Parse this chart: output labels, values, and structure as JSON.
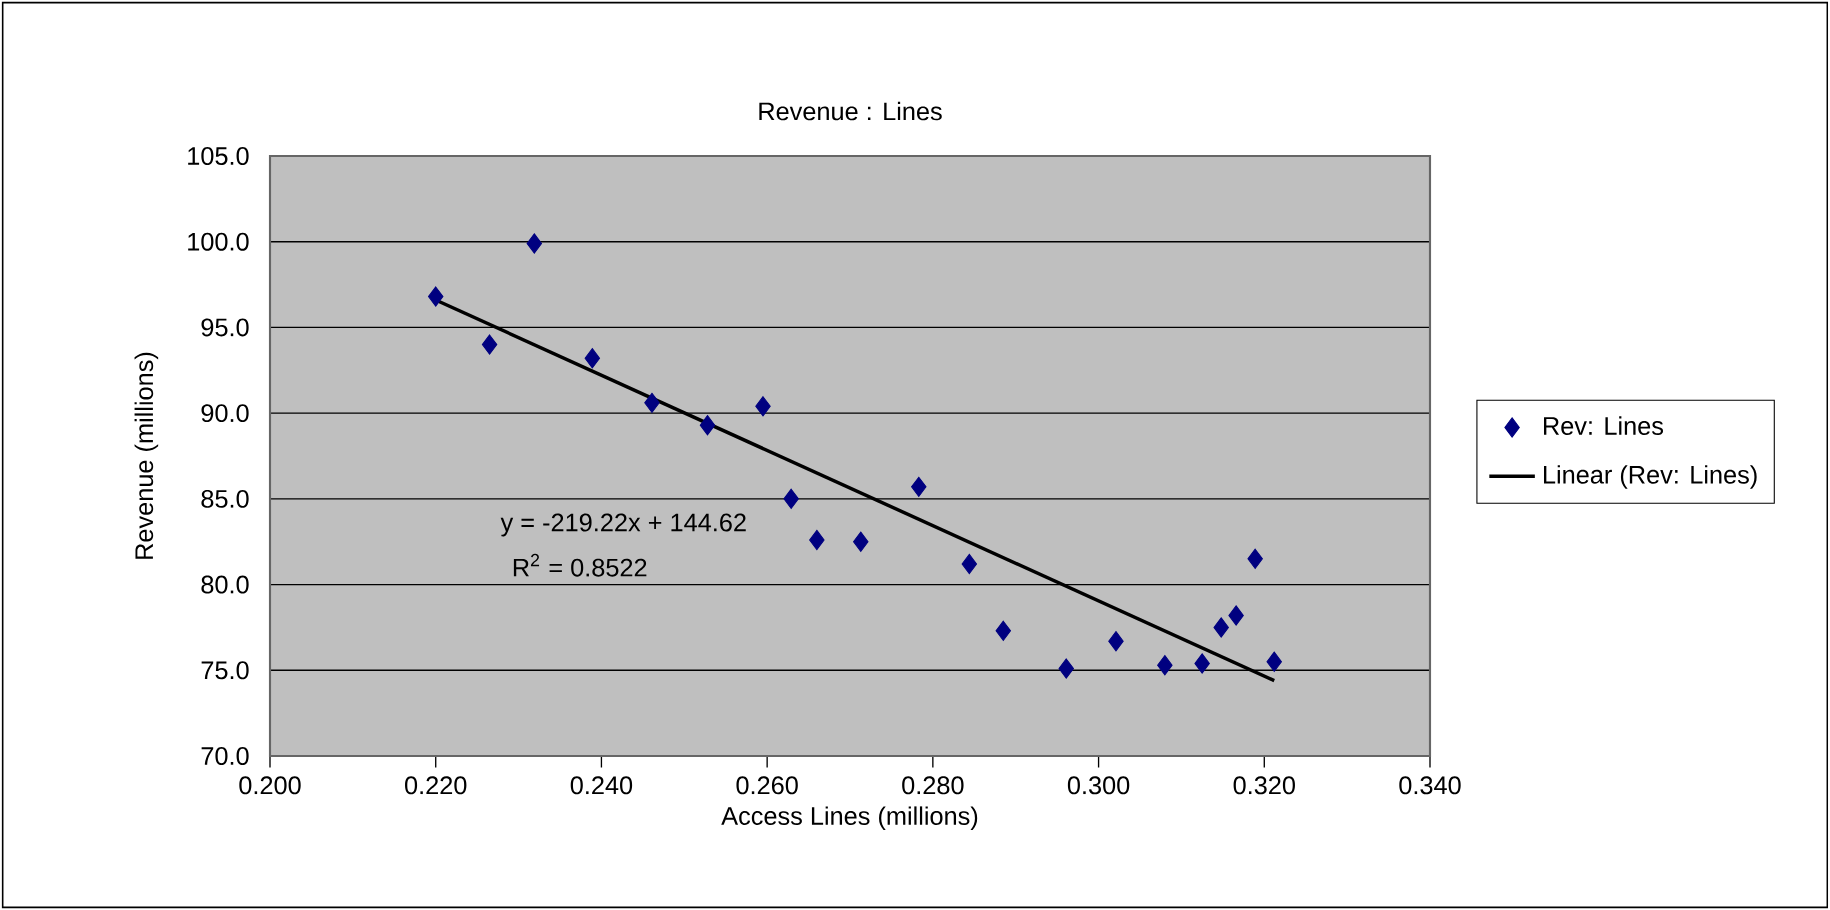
{
  "chart_data": {
    "type": "scatter",
    "title": "Revenue : Lines",
    "xlabel": "Access Lines (millions)",
    "ylabel": "Revenue (millions)",
    "xlim": [
      0.2,
      0.34
    ],
    "ylim": [
      70,
      105
    ],
    "xticks": [
      {
        "value": 0.2,
        "label": "0.200"
      },
      {
        "value": 0.22,
        "label": "0.220"
      },
      {
        "value": 0.24,
        "label": "0.240"
      },
      {
        "value": 0.26,
        "label": "0.260"
      },
      {
        "value": 0.28,
        "label": "0.280"
      },
      {
        "value": 0.3,
        "label": "0.300"
      },
      {
        "value": 0.32,
        "label": "0.320"
      },
      {
        "value": 0.34,
        "label": "0.340"
      }
    ],
    "yticks": [
      {
        "value": 70,
        "label": "70.0"
      },
      {
        "value": 75,
        "label": "75.0"
      },
      {
        "value": 80,
        "label": "80.0"
      },
      {
        "value": 85,
        "label": "85.0"
      },
      {
        "value": 90,
        "label": "90.0"
      },
      {
        "value": 95,
        "label": "95.0"
      },
      {
        "value": 100,
        "label": "100.0"
      },
      {
        "value": 105,
        "label": "105.0"
      }
    ],
    "grid": "y",
    "legend": "right",
    "marker": "diamond",
    "series": [
      {
        "name": "Rev: Lines",
        "color": "#000080",
        "x": [
          0.22,
          0.2265,
          0.2319,
          0.2389,
          0.2461,
          0.2528,
          0.2595,
          0.2629,
          0.266,
          0.2713,
          0.2783,
          0.2844,
          0.2885,
          0.2961,
          0.3021,
          0.308,
          0.3125,
          0.3148,
          0.3166,
          0.3189,
          0.3212
        ],
        "values": [
          96.8,
          94.0,
          99.9,
          93.2,
          90.6,
          89.3,
          90.4,
          85.0,
          82.6,
          82.5,
          85.7,
          81.2,
          77.3,
          75.1,
          76.7,
          75.3,
          75.4,
          77.5,
          78.2,
          81.5,
          75.5
        ]
      },
      {
        "name": "Linear (Rev: Lines)",
        "type": "line",
        "color": "#000000",
        "marker": "none",
        "x": [
          0.22,
          0.3212
        ],
        "values": [
          96.6,
          74.4
        ]
      }
    ],
    "annotations": [
      "y = -219.22x + 144.62",
      "R$^{2}$ = 0.8522"
    ]
  }
}
